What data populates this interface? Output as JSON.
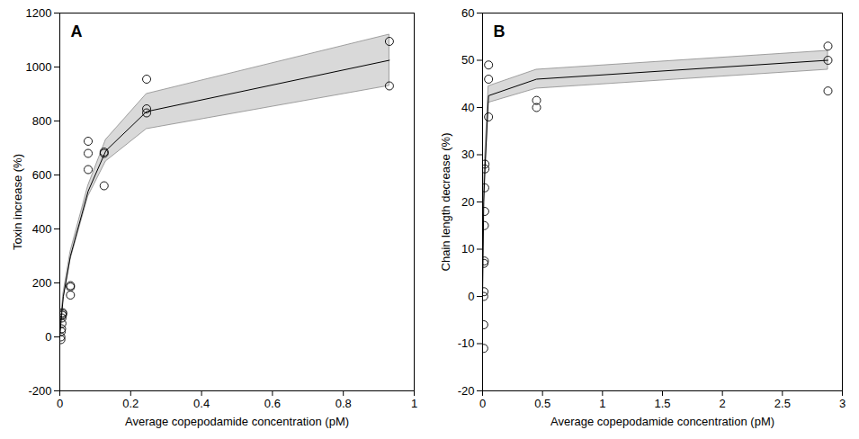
{
  "chart_data": [
    {
      "type": "scatter",
      "panel": "A",
      "xlabel": "Average copepodamide concentration (pM)",
      "ylabel": "Toxin increase (%)",
      "xlim": [
        0,
        1
      ],
      "xticks": [
        0,
        0.2,
        0.4,
        0.6,
        0.8,
        1
      ],
      "ylim": [
        -200,
        1200
      ],
      "yticks": [
        -200,
        0,
        200,
        400,
        600,
        800,
        1000,
        1200
      ],
      "series": [
        {
          "type": "scatter",
          "marker": "circle",
          "color": "#000000",
          "x": [
            0.003,
            0.003,
            0.004,
            0.005,
            0.006,
            0.006,
            0.007,
            0.008,
            0.008,
            0.03,
            0.03,
            0.03,
            0.08,
            0.08,
            0.08,
            0.125,
            0.125,
            0.125,
            0.245,
            0.245,
            0.245,
            0.93,
            0.93
          ],
          "values": [
            -10,
            0,
            20,
            30,
            50,
            70,
            80,
            85,
            90,
            190,
            185,
            155,
            725,
            680,
            620,
            685,
            680,
            560,
            955,
            845,
            830,
            1095,
            930
          ]
        },
        {
          "type": "line",
          "color": "#000000",
          "x": [
            0,
            0.005,
            0.01,
            0.03,
            0.08,
            0.13,
            0.245,
            0.93
          ],
          "values": [
            0,
            80,
            150,
            300,
            540,
            690,
            835,
            1025
          ],
          "lower": [
            0,
            75,
            140,
            285,
            520,
            650,
            770,
            930
          ],
          "upper": [
            0,
            85,
            160,
            315,
            560,
            730,
            900,
            1120
          ]
        }
      ]
    },
    {
      "type": "scatter",
      "panel": "B",
      "xlabel": "Average copepodamide concentration (pM)",
      "ylabel": "Chain length decrease (%)",
      "xlim": [
        0,
        3
      ],
      "xticks": [
        0,
        0.5,
        1,
        1.5,
        2,
        2.5,
        3
      ],
      "ylim": [
        -20,
        60
      ],
      "yticks": [
        -20,
        -10,
        0,
        10,
        20,
        30,
        40,
        50,
        60
      ],
      "series": [
        {
          "type": "scatter",
          "marker": "circle",
          "color": "#000000",
          "x": [
            0.01,
            0.01,
            0.01,
            0.012,
            0.012,
            0.015,
            0.015,
            0.018,
            0.018,
            0.02,
            0.02,
            0.05,
            0.05,
            0.05,
            0.45,
            0.45,
            2.88,
            2.88,
            2.88
          ],
          "values": [
            -11,
            -6,
            0,
            1,
            7,
            7.5,
            15,
            18,
            23,
            27,
            28,
            49,
            46,
            38,
            41.5,
            40,
            53,
            50,
            43.5
          ]
        },
        {
          "type": "line",
          "color": "#000000",
          "x": [
            0,
            0.01,
            0.02,
            0.05,
            0.45,
            2.88
          ],
          "values": [
            0,
            20,
            27,
            42.5,
            46,
            50
          ],
          "lower": [
            0,
            18,
            25,
            41,
            44,
            48
          ],
          "upper": [
            0,
            22,
            29,
            44.5,
            48,
            52
          ]
        }
      ]
    }
  ]
}
